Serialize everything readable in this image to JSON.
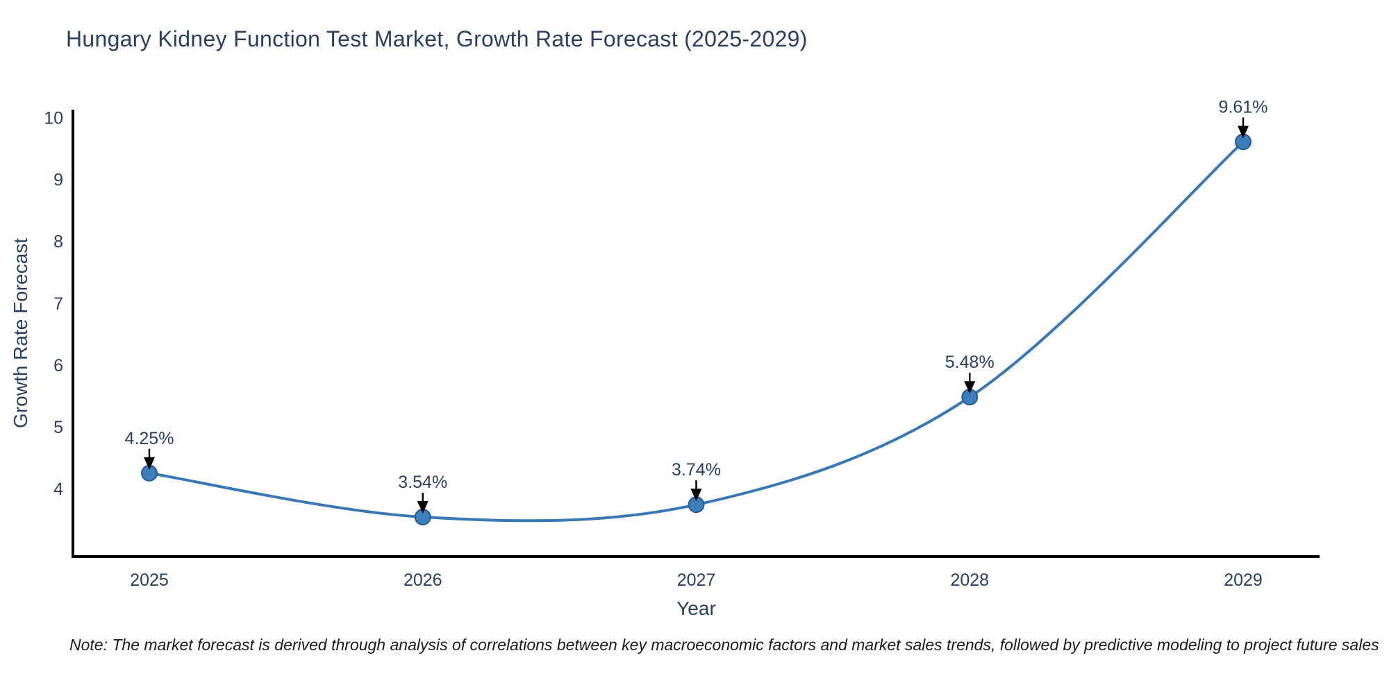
{
  "title": "Hungary Kidney Function Test Market, Growth Rate Forecast (2025-2029)",
  "note": "Note: The market forecast is derived through analysis of correlations between key macroeconomic factors and market sales trends, followed by predictive modeling to project future sales",
  "chart_data": {
    "type": "line",
    "line_shape": "spline",
    "title": "Hungary Kidney Function Test Market, Growth Rate Forecast (2025-2029)",
    "xlabel": "Year",
    "ylabel": "Growth Rate Forecast",
    "x": [
      "2025",
      "2026",
      "2027",
      "2028",
      "2029"
    ],
    "y": [
      4.25,
      3.54,
      3.74,
      5.48,
      9.61
    ],
    "point_labels": [
      "4.25%",
      "3.54%",
      "3.74%",
      "5.48%",
      "9.61%"
    ],
    "y_ticks": [
      4,
      5,
      6,
      7,
      8,
      9,
      10
    ],
    "ylim": [
      2.9,
      10.13
    ],
    "grid": false,
    "legend": false,
    "annotations_arrow": "down",
    "colors": {
      "line": "#3a78b4",
      "marker_fill": "#3c7dba",
      "marker_edge": "#235d8f",
      "text": "#2a3f5f",
      "axis": "#000000",
      "arrow": "#000000",
      "background": "#ffffff"
    }
  }
}
